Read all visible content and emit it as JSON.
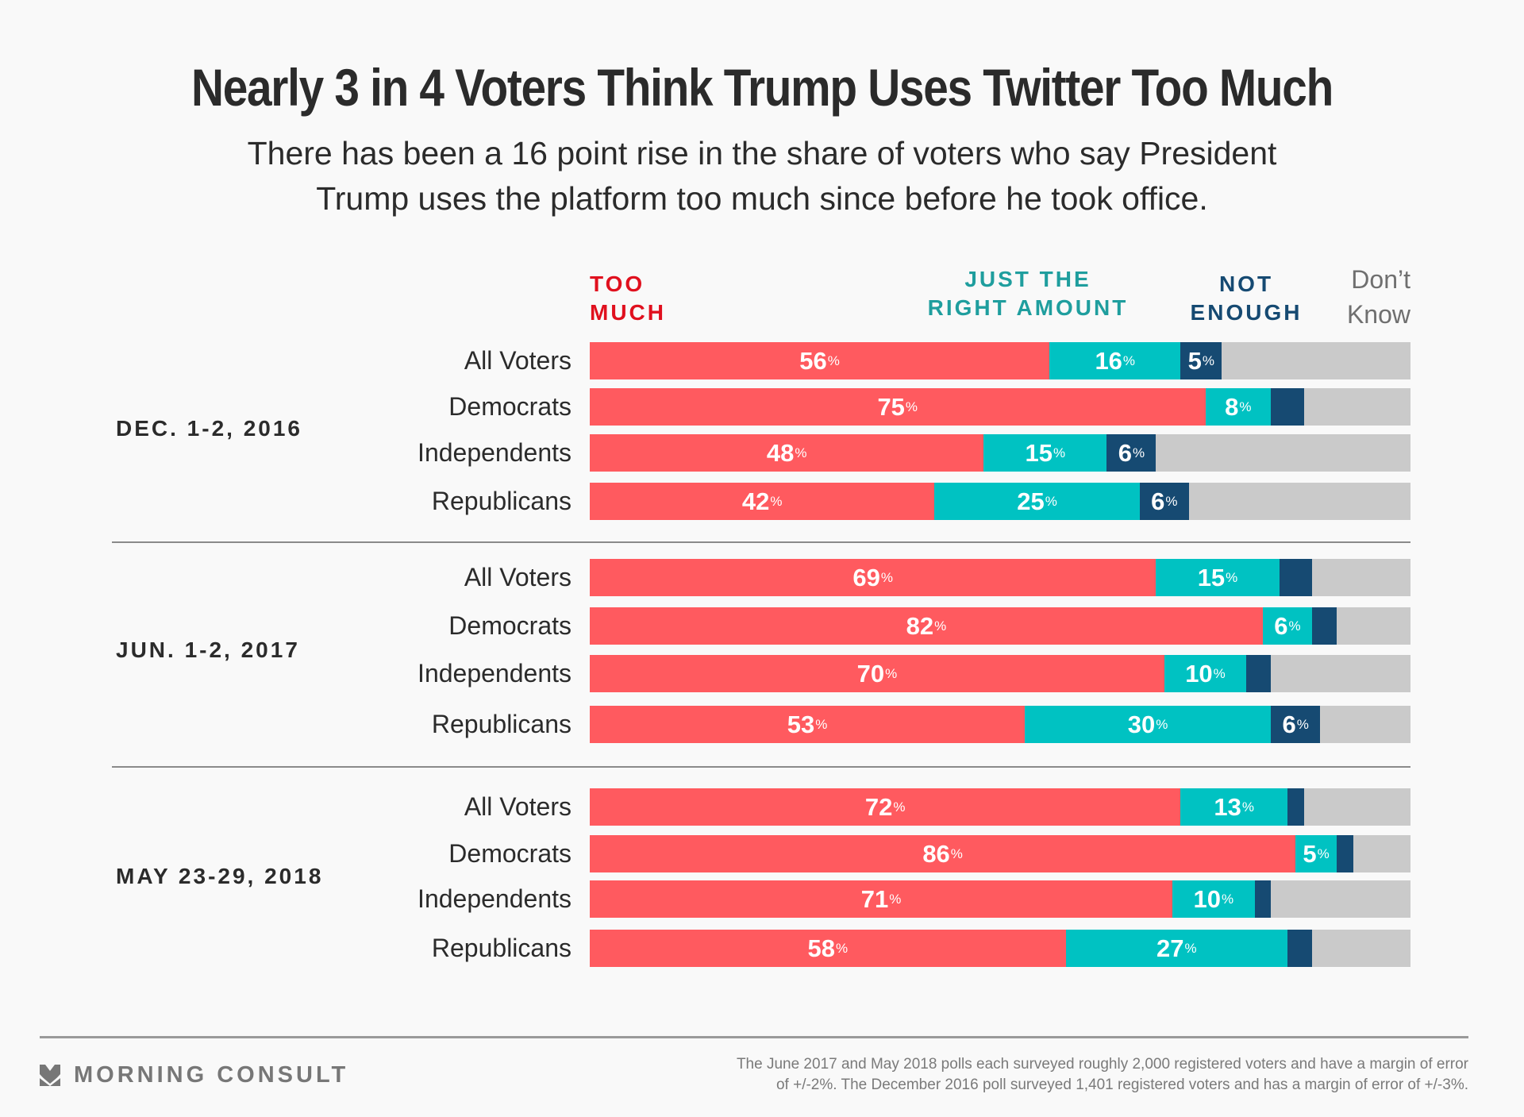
{
  "chart_data": {
    "type": "bar",
    "orientation": "horizontal-stacked-100",
    "title": "Nearly 3 in 4 Voters Think Trump Uses Twitter Too Much",
    "subtitle": [
      "There has been a 16 point rise in the share of voters who say President",
      "Trump uses the platform too much since before he took office."
    ],
    "xlabel": "",
    "ylabel": "",
    "xlim": [
      0,
      100
    ],
    "grid": false,
    "legend_position": "top",
    "legend": [
      {
        "key": "too_much",
        "lines": [
          "TOO",
          "MUCH"
        ],
        "color": "#FF5A5F",
        "label_color": "#E0101E"
      },
      {
        "key": "just_right",
        "lines": [
          "JUST THE",
          "RIGHT AMOUNT"
        ],
        "color": "#00C2C2",
        "label_color": "#1F9E9E"
      },
      {
        "key": "not_enough",
        "lines": [
          "NOT",
          "ENOUGH"
        ],
        "color": "#164A72",
        "label_color": "#164A72"
      },
      {
        "key": "dont_know",
        "lines": [
          "Don’t",
          "Know"
        ],
        "color": "#CACACA",
        "label_color": "#6F6F6F"
      }
    ],
    "series": [
      {
        "name": "Too Much",
        "key": "too_much"
      },
      {
        "name": "Just The Right Amount",
        "key": "just_right"
      },
      {
        "name": "Not Enough",
        "key": "not_enough"
      },
      {
        "name": "Don't Know",
        "key": "dont_know"
      }
    ],
    "groups": [
      {
        "date": "DEC. 1-2, 2016",
        "rows": [
          {
            "category": "All Voters",
            "too_much": 56,
            "just_right": 16,
            "not_enough": 5,
            "labels": [
              "56",
              "16",
              "5"
            ]
          },
          {
            "category": "Democrats",
            "too_much": 75,
            "just_right": 8,
            "not_enough": 4,
            "labels": [
              "75",
              "8",
              ""
            ]
          },
          {
            "category": "Independents",
            "too_much": 48,
            "just_right": 15,
            "not_enough": 6,
            "labels": [
              "48",
              "15",
              "6"
            ]
          },
          {
            "category": "Republicans",
            "too_much": 42,
            "just_right": 25,
            "not_enough": 6,
            "labels": [
              "42",
              "25",
              "6"
            ]
          }
        ]
      },
      {
        "date": "JUN. 1-2, 2017",
        "rows": [
          {
            "category": "All Voters",
            "too_much": 69,
            "just_right": 15,
            "not_enough": 4,
            "labels": [
              "69",
              "15",
              ""
            ]
          },
          {
            "category": "Democrats",
            "too_much": 82,
            "just_right": 6,
            "not_enough": 3,
            "labels": [
              "82",
              "6",
              ""
            ]
          },
          {
            "category": "Independents",
            "too_much": 70,
            "just_right": 10,
            "not_enough": 3,
            "labels": [
              "70",
              "10",
              ""
            ]
          },
          {
            "category": "Republicans",
            "too_much": 53,
            "just_right": 30,
            "not_enough": 6,
            "labels": [
              "53",
              "30",
              "6"
            ]
          }
        ]
      },
      {
        "date": "MAY 23-29, 2018",
        "rows": [
          {
            "category": "All Voters",
            "too_much": 72,
            "just_right": 13,
            "not_enough": 2,
            "labels": [
              "72",
              "13",
              ""
            ]
          },
          {
            "category": "Democrats",
            "too_much": 86,
            "just_right": 5,
            "not_enough": 2,
            "labels": [
              "86",
              "5",
              ""
            ]
          },
          {
            "category": "Independents",
            "too_much": 71,
            "just_right": 10,
            "not_enough": 2,
            "labels": [
              "71",
              "10",
              ""
            ]
          },
          {
            "category": "Republicans",
            "too_much": 58,
            "just_right": 27,
            "not_enough": 3,
            "labels": [
              "58",
              "27",
              ""
            ]
          }
        ]
      }
    ],
    "value_suffix": "%"
  },
  "footer": {
    "brand": "MORNING CONSULT",
    "note_lines": [
      "The June 2017 and May 2018 polls each surveyed roughly 2,000 registered voters and have a margin of error",
      "of +/-2%. The December 2016 poll surveyed 1,401 registered voters and has a margin of error of +/-3%."
    ]
  },
  "icons": {
    "logo": "morning-consult-chevron-icon"
  }
}
